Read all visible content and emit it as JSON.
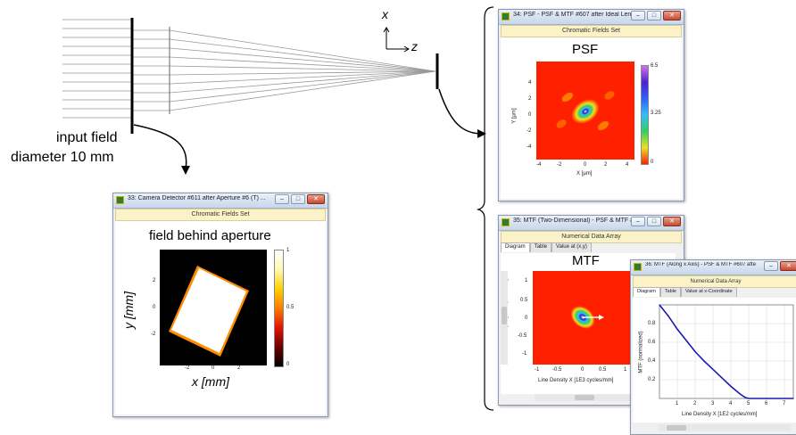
{
  "diagram": {
    "axis_x_label": "x",
    "axis_z_label": "z",
    "input_field_line1": "input field",
    "input_field_line2": "diameter 10 mm"
  },
  "camera_window": {
    "title": "33: Camera Detector #611 after Aperture #6 (T) ...",
    "subtitle": "Chromatic Fields Set",
    "plot_title": "field behind aperture",
    "xlabel": "x [mm]",
    "ylabel": "y [mm]",
    "xticks": [
      "-2",
      "0",
      "2"
    ],
    "yticks": [
      "2",
      "0",
      "-2"
    ],
    "colorbar_ticks": [
      "1",
      "0.5",
      "0"
    ],
    "colormap": [
      "#ffffff",
      "#fff7b0",
      "#ffd000",
      "#ff7a00",
      "#e01500",
      "#6b0000",
      "#000000"
    ]
  },
  "psf_window": {
    "title": "34: PSF - PSF & MTF #607 after Ideal Lens #7 (T)...",
    "subtitle": "Chromatic Fields Set",
    "plot_title": "PSF",
    "xlabel": "X [µm]",
    "ylabel": "Y [µm]",
    "xticks": [
      "-4",
      "-2",
      "0",
      "2",
      "4"
    ],
    "yticks": [
      "4",
      "2",
      "0",
      "-2",
      "-4"
    ],
    "colorbar_ticks": [
      "6.5",
      "3.25",
      "0"
    ],
    "colormap": [
      "#d070f0",
      "#5020d0",
      "#3060ff",
      "#30c0ff",
      "#30d060",
      "#f0e020",
      "#ff2000"
    ]
  },
  "mtf2d_window": {
    "title": "35: MTF (Two-Dimensional) - PSF & MTF #607 ...",
    "subtitle": "Numerical Data Array",
    "tabs": [
      "Diagram",
      "Table",
      "Value at (x,y)"
    ],
    "plot_title": "MTF",
    "xlabel": "Line Density X [1E3 cycles/mm]",
    "ylabel": "Line Density Y [1E3 cycles/mm]",
    "xticks": [
      "-1",
      "-0.5",
      "0",
      "0.5",
      "1"
    ],
    "yticks": [
      "1",
      "0.5",
      "0",
      "-0.5",
      "-1"
    ]
  },
  "mtf1d_window": {
    "title": "36: MTF (Along x Axis) - PSF & MTF #607 after ...",
    "subtitle": "Numerical Data Array",
    "tabs": [
      "Diagram",
      "Table",
      "Value at x-Coordinate"
    ],
    "xlabel": "Line Density X [1E2 cycles/mm]",
    "ylabel": "MTF (normalized)",
    "xticks": [
      "1",
      "2",
      "3",
      "4",
      "5",
      "6",
      "7"
    ],
    "yticks": [
      "0.8",
      "0.6",
      "0.4",
      "0.2"
    ]
  },
  "chart_data": {
    "type": "line",
    "title": "",
    "xlabel": "Line Density X [1E2 cycles/mm]",
    "ylabel": "MTF (normalized)",
    "xlim": [
      0,
      7.5
    ],
    "ylim": [
      0,
      1
    ],
    "x": [
      0,
      0.5,
      1,
      1.5,
      2,
      2.5,
      3,
      3.5,
      4,
      4.5,
      4.8,
      5,
      6,
      7,
      7.5
    ],
    "series": [
      {
        "values": [
          1.0,
          0.88,
          0.74,
          0.62,
          0.5,
          0.4,
          0.31,
          0.22,
          0.13,
          0.05,
          0.01,
          0.0,
          0.0,
          0.0,
          0.0
        ]
      }
    ],
    "grid": true,
    "line_color": "#1a1ab0"
  }
}
